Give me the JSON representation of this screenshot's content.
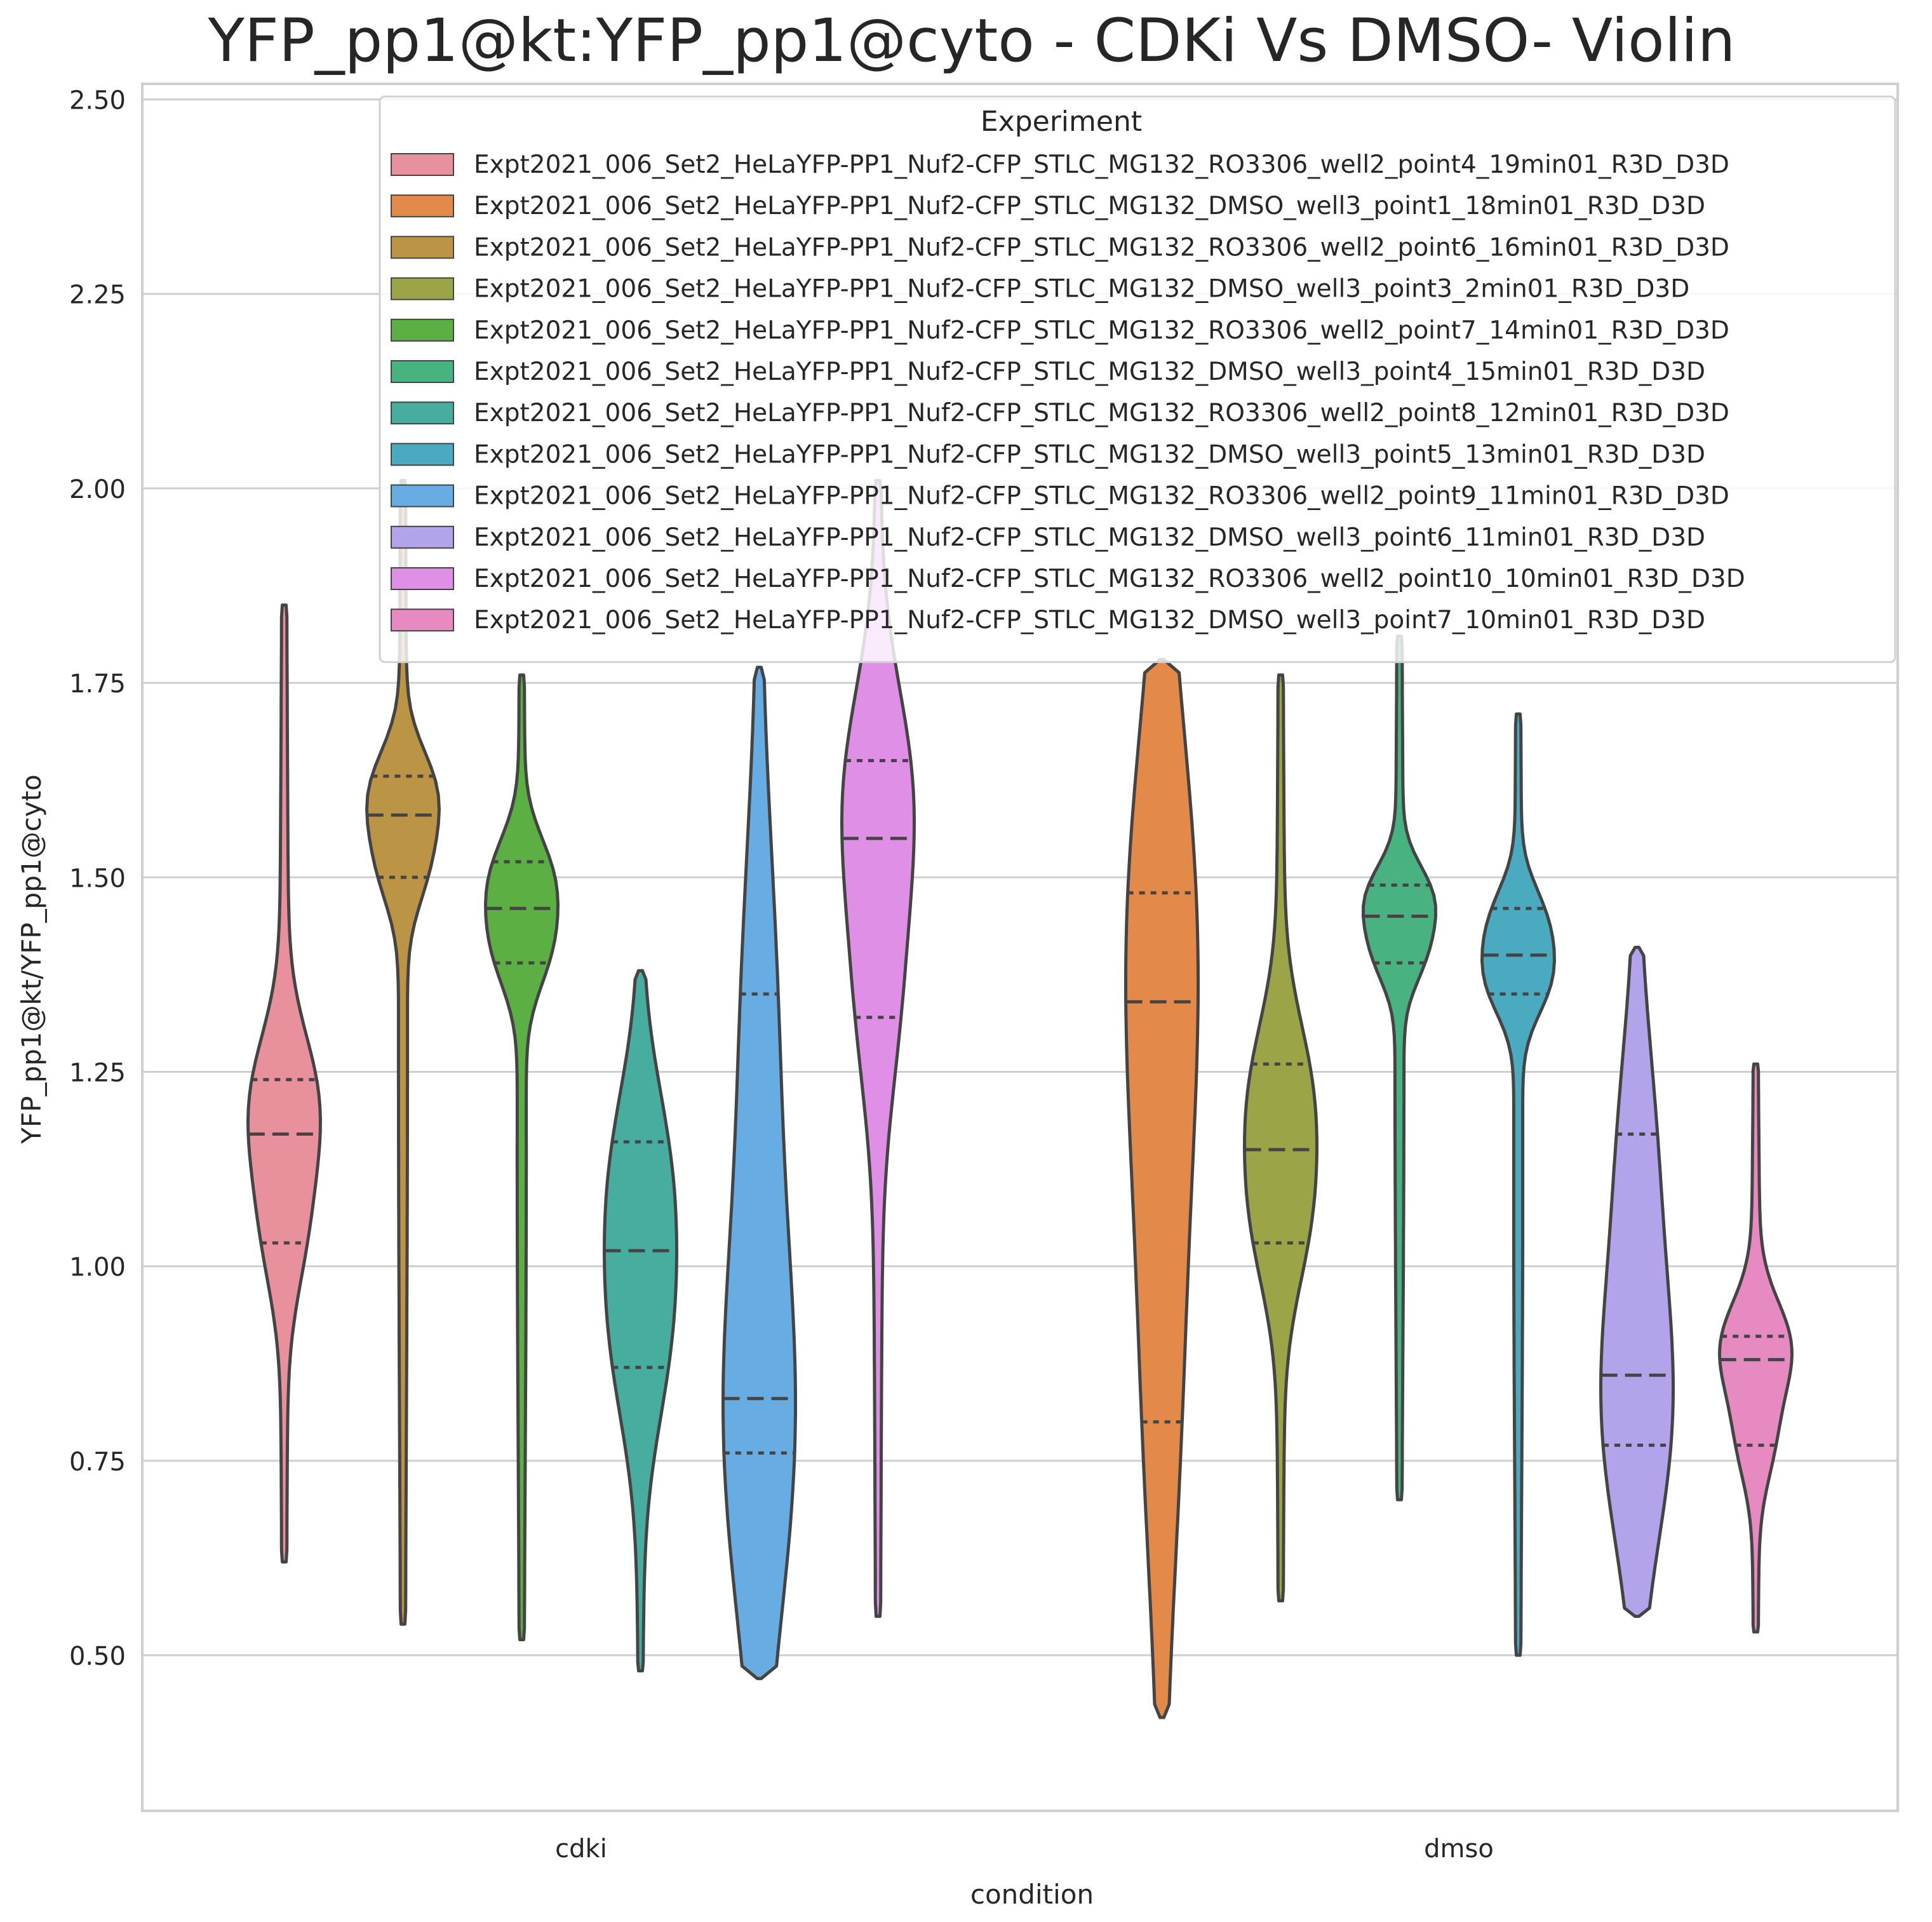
{
  "chart_data": {
    "type": "violin",
    "title": "YFP_pp1@kt:YFP_pp1@cyto - CDKi Vs DMSO- Violin",
    "xlabel": "condition",
    "ylabel": "YFP_pp1@kt/YFP_pp1@cyto",
    "ylim": [
      0.3,
      2.52
    ],
    "yticks": [
      "0.50",
      "0.75",
      "1.00",
      "1.25",
      "1.50",
      "1.75",
      "2.00",
      "2.25",
      "2.50"
    ],
    "categories": [
      "cdki",
      "dmso"
    ],
    "grid": true,
    "legend": {
      "title": "Experiment",
      "placement": "top-right"
    },
    "series": [
      {
        "name": "Expt2021_006_Set2_HeLaYFP-PP1_Nuf2-CFP_STLC_MG132_RO3306_well2_point4_19min01_R3D_D3D",
        "category": "cdki",
        "color": "#e8909c",
        "min": 0.62,
        "q1": 1.03,
        "median": 1.17,
        "q3": 1.24,
        "max": 1.85
      },
      {
        "name": "Expt2021_006_Set2_HeLaYFP-PP1_Nuf2-CFP_STLC_MG132_DMSO_well3_point1_18min01_R3D_D3D",
        "category": "dmso",
        "color": "#e3894a",
        "min": 0.42,
        "q1": 0.8,
        "median": 1.34,
        "q3": 1.48,
        "max": 1.78
      },
      {
        "name": "Expt2021_006_Set2_HeLaYFP-PP1_Nuf2-CFP_STLC_MG132_RO3306_well2_point6_16min01_R3D_D3D",
        "category": "cdki",
        "color": "#bb9446",
        "min": 0.54,
        "q1": 1.5,
        "median": 1.58,
        "q3": 1.63,
        "max": 2.01
      },
      {
        "name": "Expt2021_006_Set2_HeLaYFP-PP1_Nuf2-CFP_STLC_MG132_DMSO_well3_point3_2min01_R3D_D3D",
        "category": "dmso",
        "color": "#9ba446",
        "min": 0.57,
        "q1": 1.03,
        "median": 1.15,
        "q3": 1.26,
        "max": 1.76
      },
      {
        "name": "Expt2021_006_Set2_HeLaYFP-PP1_Nuf2-CFP_STLC_MG132_RO3306_well2_point7_14min01_R3D_D3D",
        "category": "cdki",
        "color": "#5caf43",
        "min": 0.52,
        "q1": 1.39,
        "median": 1.46,
        "q3": 1.52,
        "max": 1.76
      },
      {
        "name": "Expt2021_006_Set2_HeLaYFP-PP1_Nuf2-CFP_STLC_MG132_DMSO_well3_point4_15min01_R3D_D3D",
        "category": "dmso",
        "color": "#48b281",
        "min": 0.7,
        "q1": 1.39,
        "median": 1.45,
        "q3": 1.49,
        "max": 1.81
      },
      {
        "name": "Expt2021_006_Set2_HeLaYFP-PP1_Nuf2-CFP_STLC_MG132_RO3306_well2_point8_12min01_R3D_D3D",
        "category": "cdki",
        "color": "#47ae9f",
        "min": 0.48,
        "q1": 0.87,
        "median": 1.02,
        "q3": 1.16,
        "max": 1.38
      },
      {
        "name": "Expt2021_006_Set2_HeLaYFP-PP1_Nuf2-CFP_STLC_MG132_DMSO_well3_point5_13min01_R3D_D3D",
        "category": "dmso",
        "color": "#4aabc0",
        "min": 0.5,
        "q1": 1.35,
        "median": 1.4,
        "q3": 1.46,
        "max": 1.71
      },
      {
        "name": "Expt2021_006_Set2_HeLaYFP-PP1_Nuf2-CFP_STLC_MG132_RO3306_well2_point9_11min01_R3D_D3D",
        "category": "cdki",
        "color": "#67ade4",
        "min": 0.47,
        "q1": 0.76,
        "median": 0.83,
        "q3": 1.35,
        "max": 1.77
      },
      {
        "name": "Expt2021_006_Set2_HeLaYFP-PP1_Nuf2-CFP_STLC_MG132_DMSO_well3_point6_11min01_R3D_D3D",
        "category": "dmso",
        "color": "#b3a3ea",
        "min": 0.55,
        "q1": 0.77,
        "median": 0.86,
        "q3": 1.17,
        "max": 1.41
      },
      {
        "name": "Expt2021_006_Set2_HeLaYFP-PP1_Nuf2-CFP_STLC_MG132_RO3306_well2_point10_10min01_R3D_D3D",
        "category": "cdki",
        "color": "#df8fe6",
        "min": 0.55,
        "q1": 1.32,
        "median": 1.55,
        "q3": 1.65,
        "max": 2.01
      },
      {
        "name": "Expt2021_006_Set2_HeLaYFP-PP1_Nuf2-CFP_STLC_MG132_DMSO_well3_point7_10min01_R3D_D3D",
        "category": "dmso",
        "color": "#e68ac1",
        "min": 0.53,
        "q1": 0.77,
        "median": 0.88,
        "q3": 0.91,
        "max": 1.26
      }
    ]
  }
}
